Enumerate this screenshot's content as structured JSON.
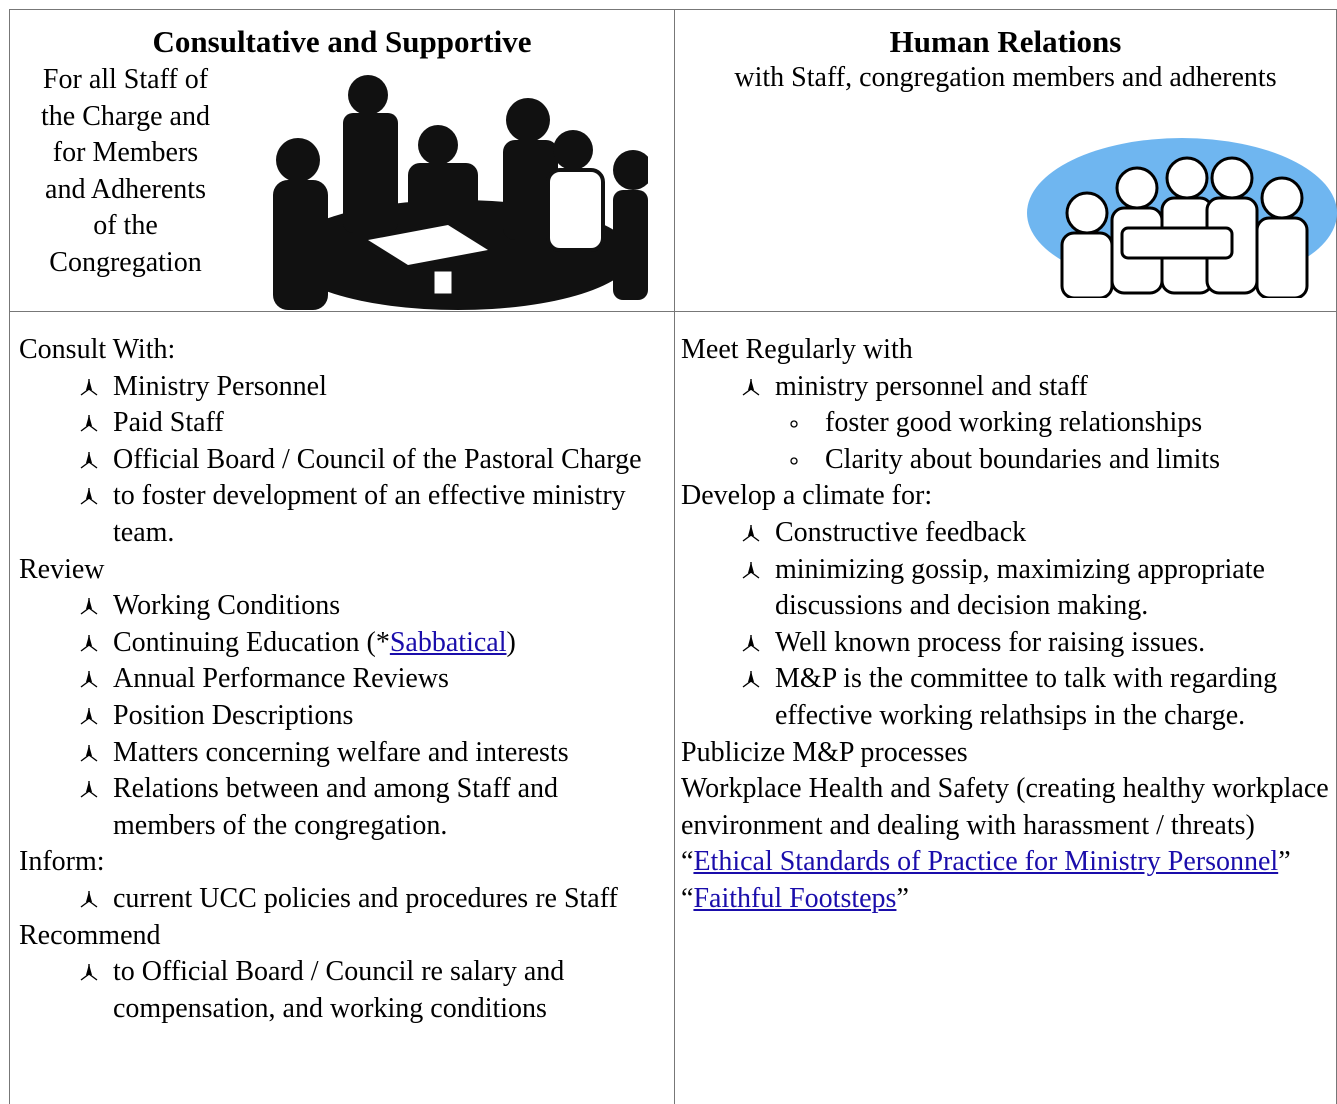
{
  "left": {
    "heading": "Consultative and Supportive",
    "intro": [
      "For all Staff of",
      "the Charge  and",
      "for Members",
      "and Adherents",
      "of the",
      "Congregation"
    ],
    "sections": [
      {
        "label": "Consult With:",
        "items": [
          "Ministry Personnel",
          "Paid Staff",
          "Official Board / Council of the Pastoral Charge",
          "to foster development of an effective ministry team."
        ]
      },
      {
        "label": "Review",
        "items": [
          "Working Conditions",
          {
            "text": "Continuing Education (*",
            "link": "Sabbatical",
            "after": ")"
          },
          "Annual Performance Reviews",
          "Position Descriptions",
          "Matters concerning welfare and interests",
          "Relations between and among Staff and members of the congregation."
        ]
      },
      {
        "label": "Inform:",
        "items": [
          "current UCC policies and procedures re Staff"
        ]
      },
      {
        "label": "Recommend",
        "items": [
          "to Official Board / Council re salary and compensation, and working conditions"
        ]
      }
    ]
  },
  "right": {
    "heading": "Human Relations",
    "intro": [
      "with Staff, congregation members and adherents"
    ],
    "sections": [
      {
        "label": "Meet Regularly with",
        "items": [
          {
            "text": "ministry personnel and staff",
            "subitems": [
              "foster good working relationships",
              "Clarity about boundaries and limits"
            ]
          }
        ]
      },
      {
        "label": "Develop a climate for:",
        "items": [
          "Constructive feedback",
          "minimizing gossip, maximizing appropriate discussions and decision making.",
          "Well known process for raising issues.",
          "M&P is the committee to talk with regarding effective working relathsips in the charge."
        ]
      },
      {
        "label": "Publicize M&P processes",
        "items": []
      },
      {
        "label": "Workplace Health and Safety (creating healthy workplace environment and dealing with harassment / threats)",
        "items": []
      }
    ],
    "links": [
      {
        "open": "“",
        "link": "Ethical Standards of Practice for Ministry Personnel",
        "close": "”"
      },
      {
        "open": "“",
        "link": "Faithful Footsteps",
        "close": "”"
      }
    ]
  }
}
